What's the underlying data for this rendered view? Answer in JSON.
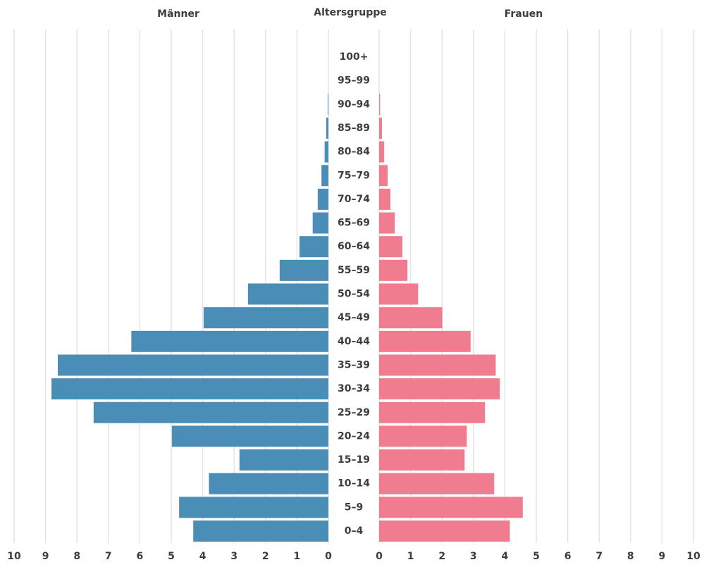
{
  "chart_data": {
    "type": "bar",
    "orientation": "horizontal",
    "category_label": "Altersgruppe",
    "categories": [
      "0–4",
      "5–9",
      "10–14",
      "15–19",
      "20–24",
      "25–29",
      "30–34",
      "35–39",
      "40–44",
      "45–49",
      "50–54",
      "55–59",
      "60–64",
      "65–69",
      "70–74",
      "75–79",
      "80–84",
      "85–89",
      "90–94",
      "95–99",
      "100+"
    ],
    "series": [
      {
        "name": "Männer",
        "side": "left",
        "color": "#4a8db7",
        "values": [
          4.3,
          4.75,
          3.8,
          2.83,
          4.98,
          7.47,
          8.81,
          8.61,
          6.27,
          3.97,
          2.56,
          1.55,
          0.92,
          0.5,
          0.34,
          0.22,
          0.12,
          0.07,
          0.02,
          0,
          0
        ]
      },
      {
        "name": "Frauen",
        "side": "right",
        "color": "#ef7d8f",
        "values": [
          4.16,
          4.57,
          3.66,
          2.72,
          2.79,
          3.37,
          3.84,
          3.71,
          2.91,
          2.01,
          1.24,
          0.9,
          0.74,
          0.5,
          0.36,
          0.27,
          0.16,
          0.09,
          0.03,
          0,
          0
        ]
      }
    ],
    "ticks": [
      0,
      1,
      2,
      3,
      4,
      5,
      6,
      7,
      8,
      9,
      10
    ],
    "xlim": [
      0,
      10
    ],
    "grid": true,
    "legend": "top"
  }
}
